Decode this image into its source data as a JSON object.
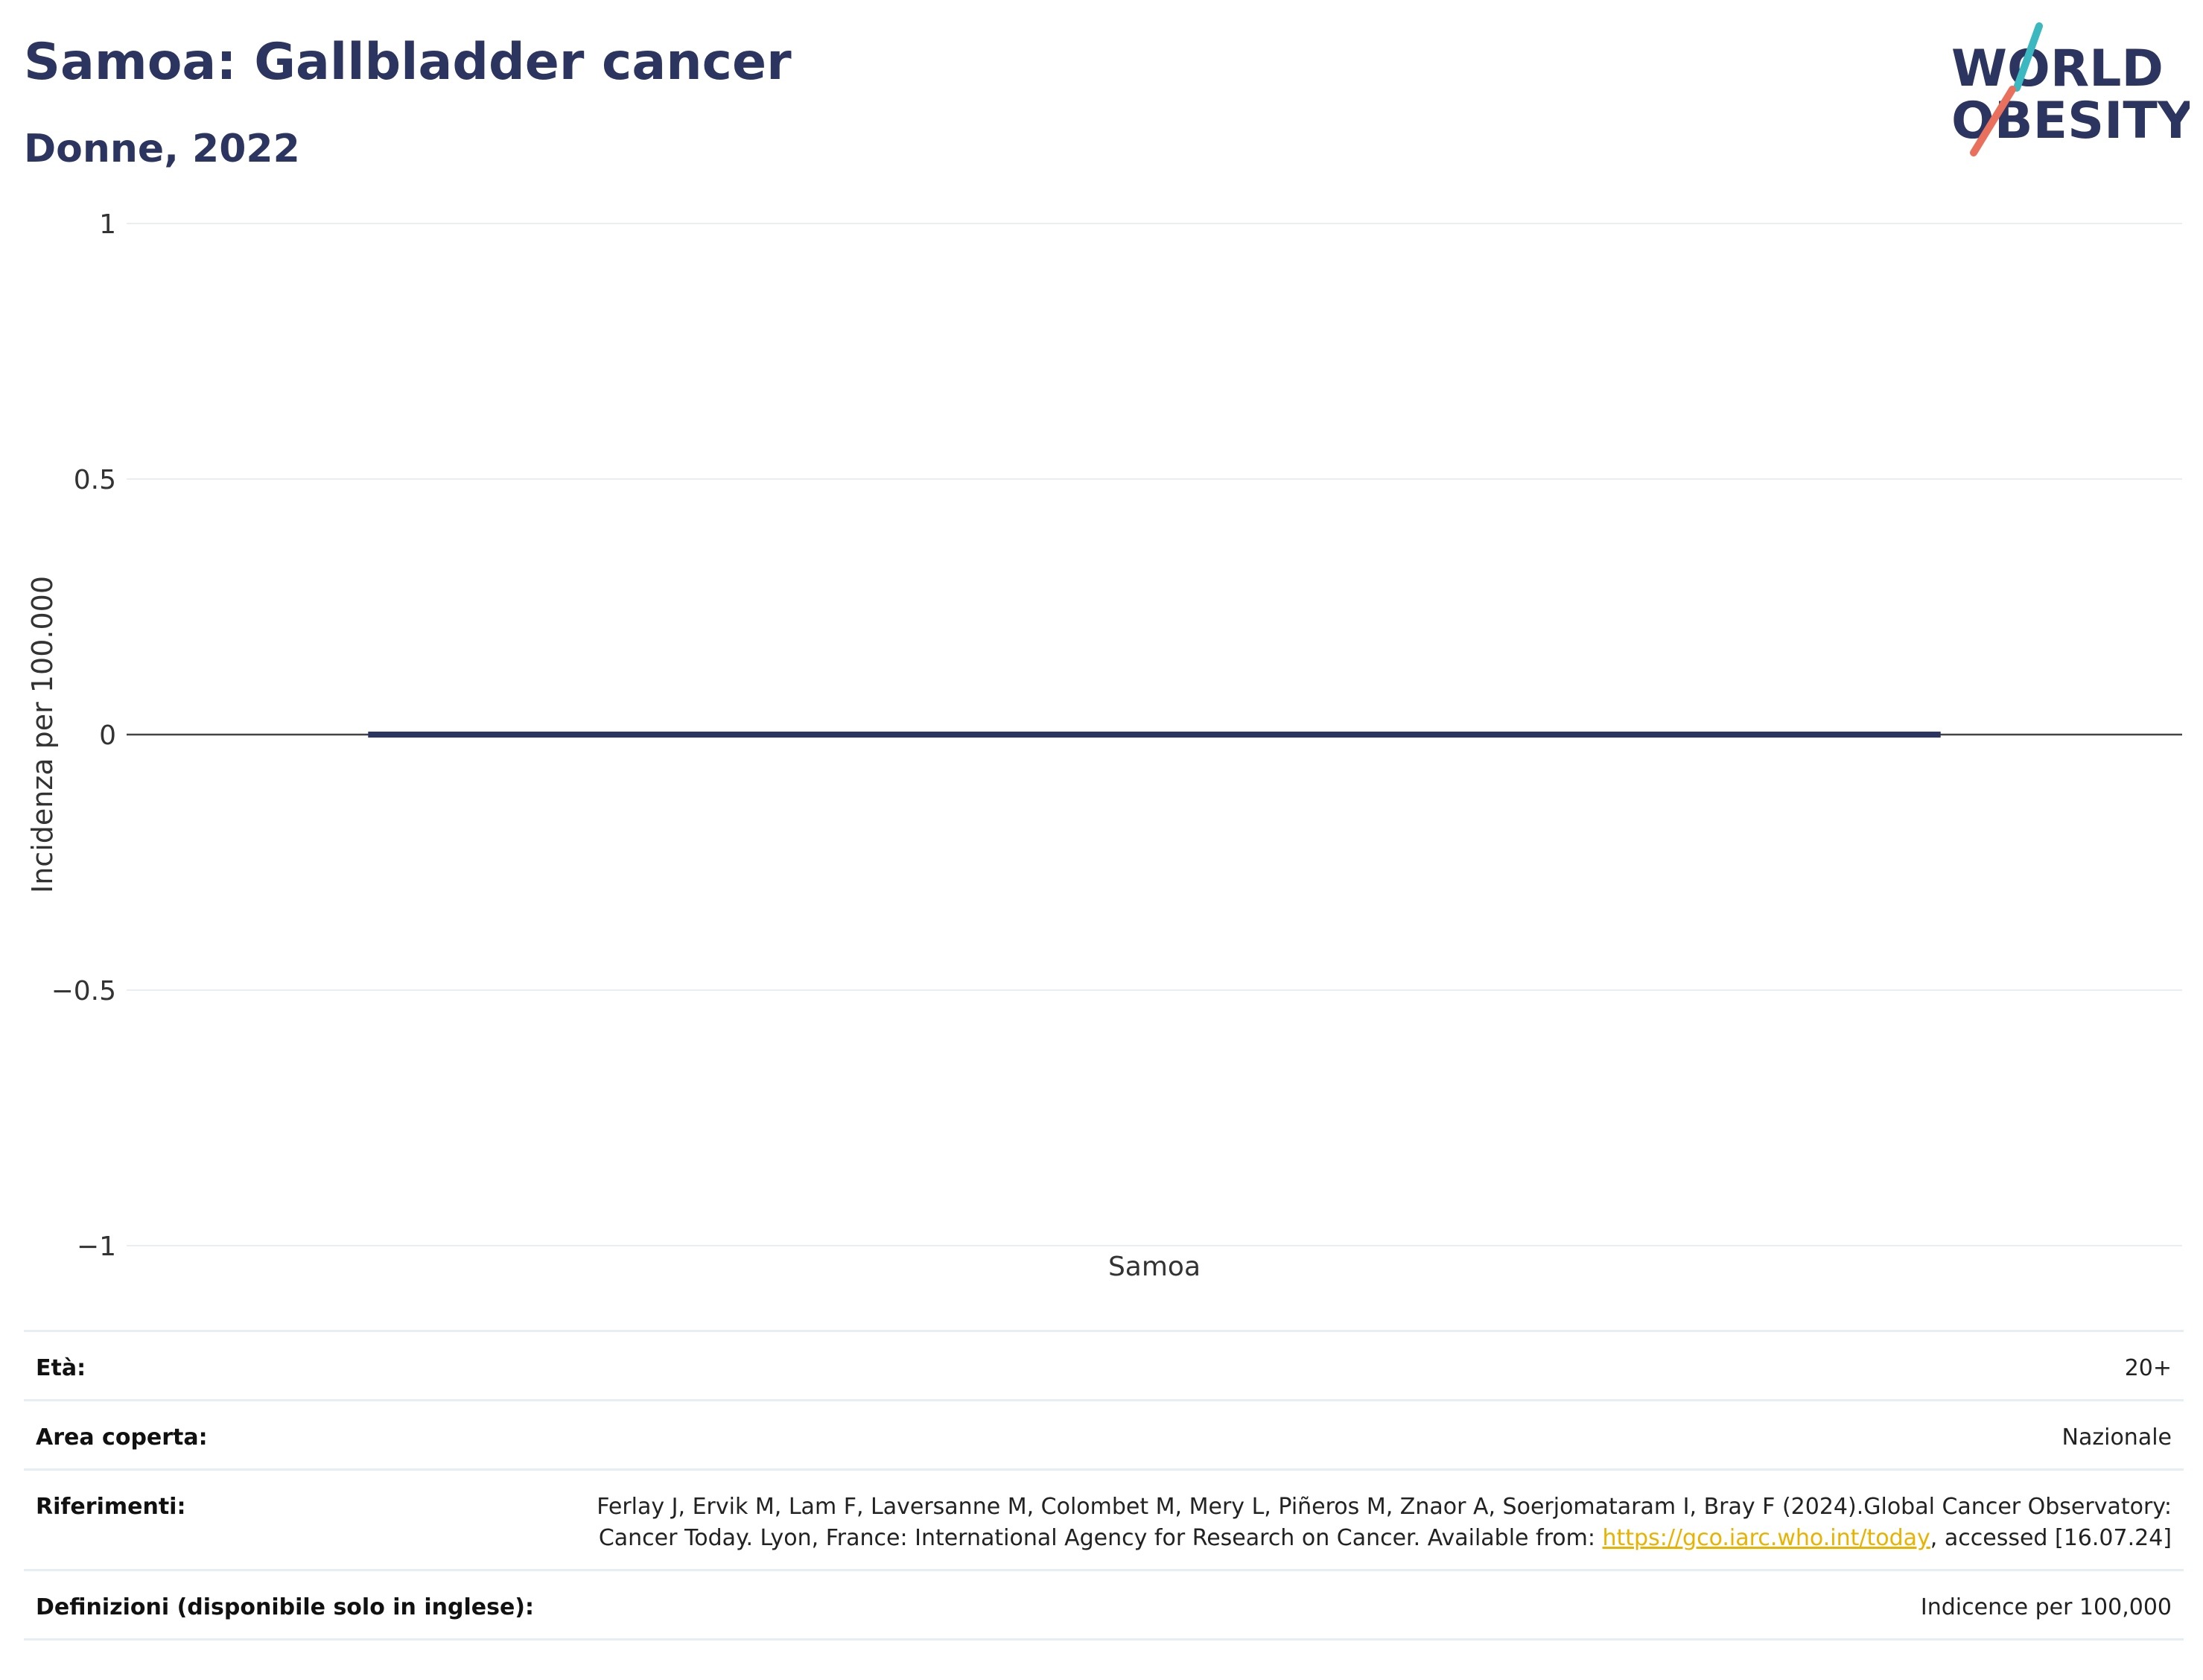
{
  "header": {
    "title": "Samoa: Gallbladder cancer",
    "subtitle": "Donne, 2022"
  },
  "logo": {
    "line1": "WORLD",
    "line2": "OBESITY",
    "text_color": "#2b3560",
    "accent_teal": "#3cb8c0",
    "accent_coral": "#e8705d"
  },
  "chart_data": {
    "type": "bar",
    "categories": [
      "Samoa"
    ],
    "values": [
      0
    ],
    "xlabel": "",
    "ylabel": "Incidenza per 100.000",
    "ylim": [
      -1,
      1
    ],
    "yticks": [
      1,
      0.5,
      0,
      -0.5,
      -1
    ],
    "ytick_labels": [
      "1",
      "0.5",
      "0",
      "−0.5",
      "−1"
    ],
    "grid": true,
    "bar_color": "#2b3560"
  },
  "info": {
    "age_label": "Età:",
    "age_value": "20+",
    "area_label": "Area coperta:",
    "area_value": "Nazionale",
    "ref_label": "Riferimenti:",
    "ref_text_1": "Ferlay J, Ervik M, Lam F, Laversanne M, Colombet M, Mery L, Piñeros M, Znaor A, Soerjomataram I, Bray F (2024).Global Cancer Observatory: Cancer Today. Lyon, France: International Agency for Research on Cancer. Available from: ",
    "ref_link": "https://gco.iarc.who.int/today",
    "ref_text_2": ", accessed [16.07.24]",
    "def_label": "Definizioni (disponibile solo in inglese):",
    "def_value": "Indicence per 100,000"
  }
}
